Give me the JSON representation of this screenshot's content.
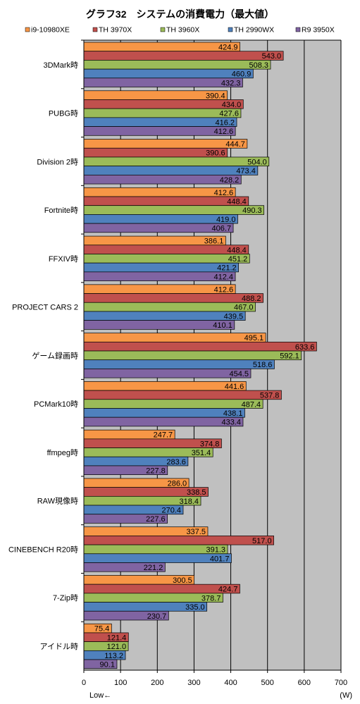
{
  "chart_data": {
    "type": "bar",
    "orientation": "horizontal",
    "title": "グラフ32　システムの消費電力（最大値）",
    "unit_label": "(W)",
    "direction_label": "Low←",
    "categories": [
      "3DMark時",
      "PUBG時",
      "Division 2時",
      "Fortnite時",
      "FFXIV時",
      "PROJECT CARS 2",
      "ゲーム録画時",
      "PCMark10時",
      "ffmpeg時",
      "RAW現像時",
      "CINEBENCH R20時",
      "7-Zip時",
      "アイドル時"
    ],
    "series": [
      {
        "name": "i9-10980XE",
        "color": "#F79646",
        "values": [
          424.9,
          390.4,
          444.7,
          412.6,
          386.1,
          412.6,
          495.1,
          441.6,
          247.7,
          286.0,
          337.5,
          300.5,
          75.4
        ]
      },
      {
        "name": "TH 3970X",
        "color": "#C0504D",
        "values": [
          543.0,
          434.0,
          390.6,
          448.4,
          448.4,
          488.2,
          633.6,
          537.8,
          374.8,
          338.5,
          517.0,
          424.7,
          121.4
        ]
      },
      {
        "name": "TH 3960X",
        "color": "#9BBB59",
        "values": [
          508.3,
          427.6,
          504.0,
          490.3,
          451.2,
          467.0,
          592.1,
          487.4,
          351.4,
          318.4,
          391.3,
          378.7,
          121.0
        ]
      },
      {
        "name": "TH 2990WX",
        "color": "#4F81BD",
        "values": [
          460.9,
          416.2,
          473.4,
          419.0,
          421.2,
          439.5,
          518.6,
          438.1,
          283.6,
          270.4,
          401.7,
          335.0,
          113.2
        ]
      },
      {
        "name": "R9 3950X",
        "color": "#8064A2",
        "values": [
          432.3,
          412.6,
          428.2,
          406.7,
          412.4,
          410.1,
          454.5,
          433.4,
          227.8,
          227.6,
          221.2,
          230.7,
          90.1
        ]
      }
    ],
    "x_ticks": [
      0,
      100,
      200,
      300,
      400,
      500,
      600,
      700
    ],
    "xlim": [
      0,
      700
    ],
    "grid": true,
    "plot_background": "#C0C0C0",
    "legend_position": "top"
  }
}
